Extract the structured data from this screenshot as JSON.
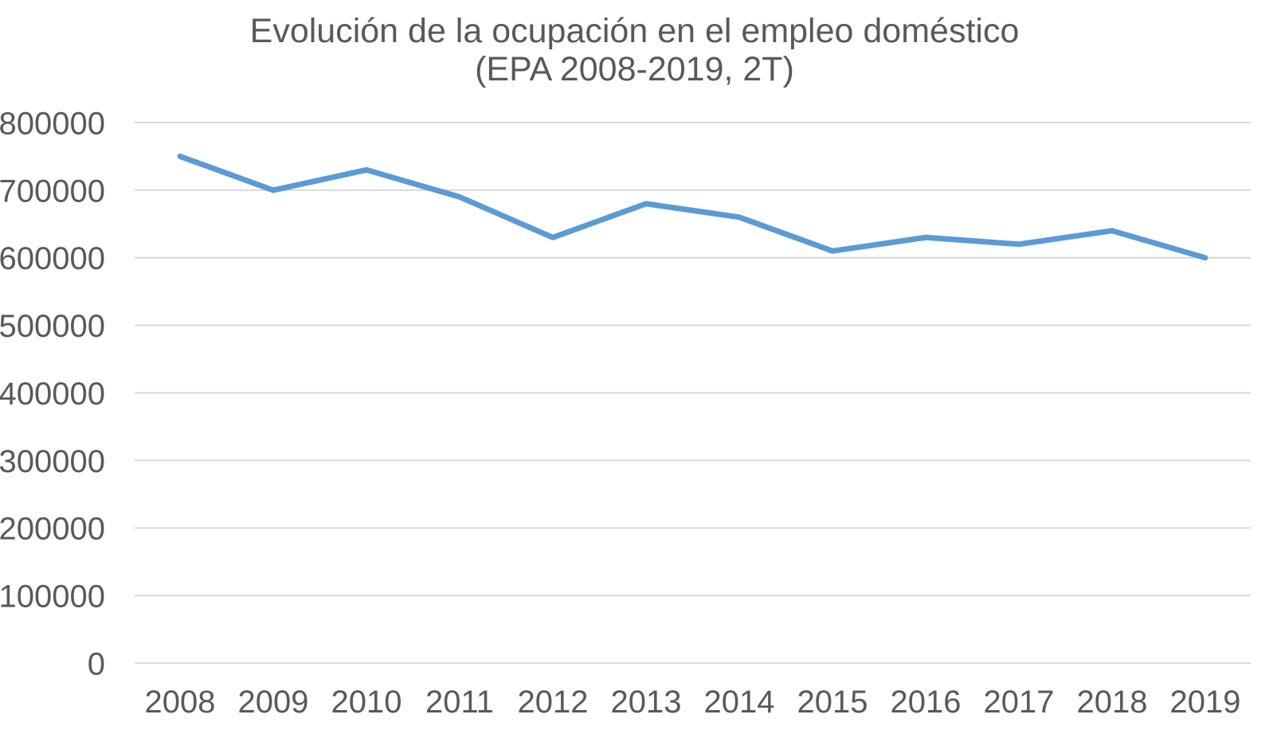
{
  "chart_data": {
    "type": "line",
    "title": "Evolución de la ocupación en el empleo doméstico (EPA 2008-2019, 2T)",
    "title_line1": "Evolución de la ocupación en el empleo doméstico",
    "title_line2": "(EPA 2008-2019, 2T)",
    "xlabel": "",
    "ylabel": "",
    "categories": [
      "2008",
      "2009",
      "2010",
      "2011",
      "2012",
      "2013",
      "2014",
      "2015",
      "2016",
      "2017",
      "2018",
      "2019"
    ],
    "values": [
      750000,
      700000,
      730000,
      690000,
      630000,
      680000,
      660000,
      610000,
      630000,
      620000,
      640000,
      600000
    ],
    "ylim": [
      0,
      800000
    ],
    "yticks": [
      0,
      100000,
      200000,
      300000,
      400000,
      500000,
      600000,
      700000,
      800000
    ],
    "grid": true,
    "legend": "none",
    "colors": {
      "line": "#5B9BD5",
      "text": "#595959",
      "gridline": "#D9D9D9",
      "background": "#FFFFFF"
    }
  }
}
